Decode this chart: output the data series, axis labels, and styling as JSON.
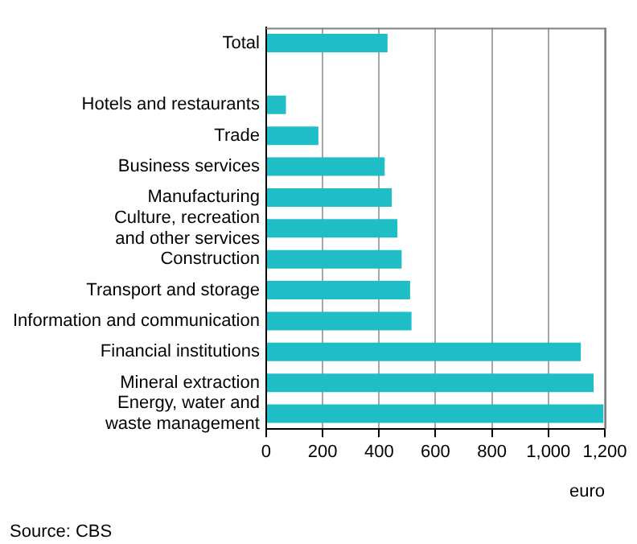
{
  "chart_data": {
    "type": "bar",
    "orientation": "horizontal",
    "categories": [
      "Total",
      null,
      "Hotels and restaurants",
      "Trade",
      "Business services",
      "Manufacturing",
      "Culture, recreation\nand other services",
      "Construction",
      "Transport and storage",
      "Information and communication",
      "Financial institutions",
      "Mineral extraction",
      "Energy, water and\nwaste management"
    ],
    "values": [
      430,
      null,
      70,
      185,
      420,
      445,
      465,
      480,
      510,
      515,
      1115,
      1160,
      1195
    ],
    "color": "#1fbdc6",
    "xlim": [
      0,
      1200
    ],
    "xticks": [
      0,
      200,
      400,
      600,
      800,
      {
        "value": 1000,
        "label": "1,000"
      },
      {
        "value": 1200,
        "label": "1,200"
      }
    ],
    "xlabel": "euro",
    "grid": "x",
    "legend": false,
    "annotations": [
      "Source: CBS"
    ]
  }
}
